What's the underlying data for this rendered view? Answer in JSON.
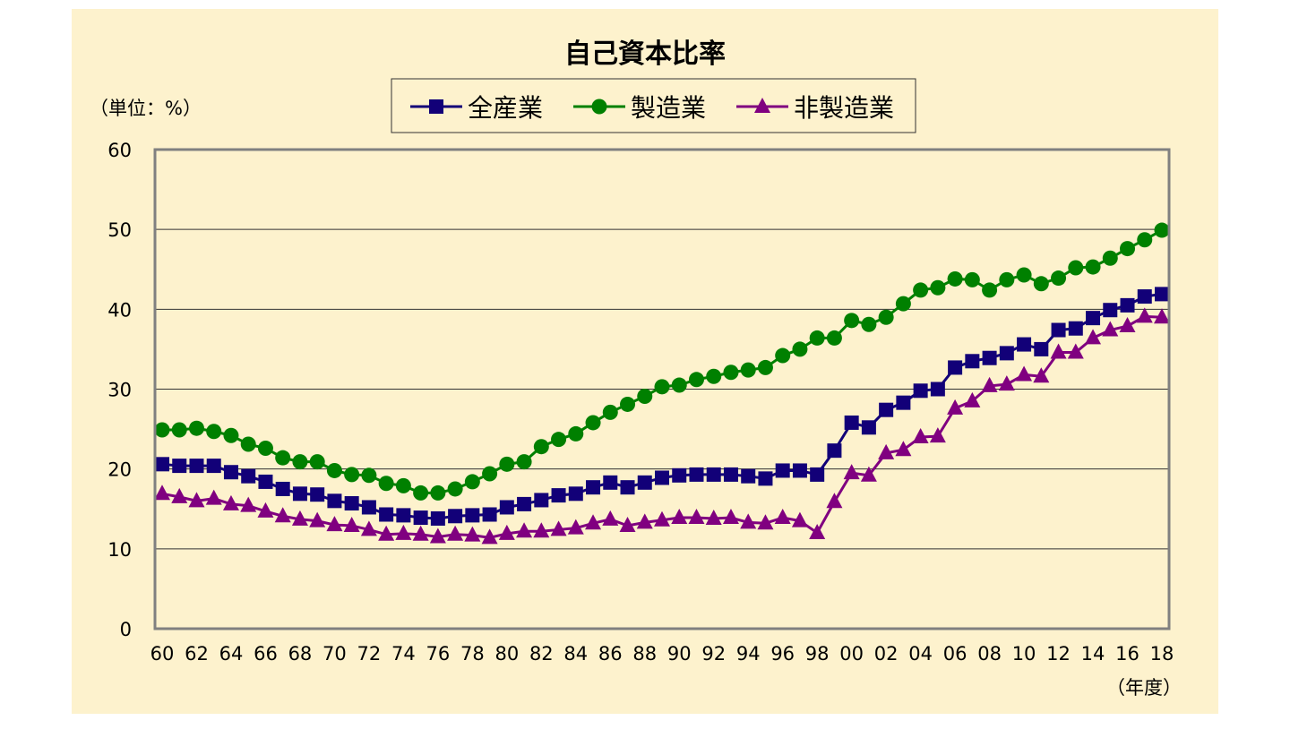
{
  "chart_data": {
    "type": "line",
    "title": "自己資本比率",
    "unit_label": "（単位：%）",
    "xlabel": "（年度）",
    "ylabel": "",
    "ylim": [
      0,
      60
    ],
    "yticks": [
      "0",
      "10",
      "20",
      "30",
      "40",
      "50",
      "60"
    ],
    "grid": true,
    "legend_position": "top-center",
    "x": [
      "60",
      "61",
      "62",
      "63",
      "64",
      "65",
      "66",
      "67",
      "68",
      "69",
      "70",
      "71",
      "72",
      "73",
      "74",
      "75",
      "76",
      "77",
      "78",
      "79",
      "80",
      "81",
      "82",
      "83",
      "84",
      "85",
      "86",
      "87",
      "88",
      "89",
      "90",
      "91",
      "92",
      "93",
      "94",
      "95",
      "96",
      "97",
      "98",
      "99",
      "00",
      "01",
      "02",
      "03",
      "04",
      "05",
      "06",
      "07",
      "08",
      "09",
      "10",
      "11",
      "12",
      "13",
      "14",
      "15",
      "16",
      "17",
      "18"
    ],
    "xtick_labels": [
      "60",
      "62",
      "64",
      "66",
      "68",
      "70",
      "72",
      "74",
      "76",
      "78",
      "80",
      "82",
      "84",
      "86",
      "88",
      "90",
      "92",
      "94",
      "96",
      "98",
      "00",
      "02",
      "04",
      "06",
      "08",
      "10",
      "12",
      "14",
      "16",
      "18"
    ],
    "series": [
      {
        "name": "全産業",
        "color": "#120078",
        "marker": "square",
        "values": [
          20.6,
          20.4,
          20.4,
          20.4,
          19.6,
          19.1,
          18.4,
          17.5,
          16.9,
          16.8,
          16.0,
          15.7,
          15.2,
          14.3,
          14.2,
          13.9,
          13.8,
          14.1,
          14.2,
          14.3,
          15.2,
          15.6,
          16.1,
          16.7,
          16.9,
          17.7,
          18.3,
          17.7,
          18.3,
          18.9,
          19.2,
          19.3,
          19.3,
          19.3,
          19.1,
          18.8,
          19.8,
          19.8,
          19.3,
          22.3,
          25.8,
          25.2,
          27.4,
          28.3,
          29.8,
          30.0,
          32.7,
          33.5,
          33.9,
          34.5,
          35.6,
          35.0,
          37.4,
          37.6,
          38.9,
          39.9,
          40.5,
          41.6,
          41.9
        ]
      },
      {
        "name": "製造業",
        "color": "#008000",
        "marker": "circle",
        "values": [
          24.9,
          24.9,
          25.1,
          24.7,
          24.2,
          23.1,
          22.6,
          21.4,
          20.9,
          20.9,
          19.8,
          19.3,
          19.2,
          18.2,
          17.9,
          17.0,
          17.0,
          17.5,
          18.4,
          19.4,
          20.6,
          20.9,
          22.8,
          23.7,
          24.4,
          25.8,
          27.1,
          28.1,
          29.1,
          30.3,
          30.5,
          31.2,
          31.6,
          32.1,
          32.4,
          32.7,
          34.2,
          35.0,
          36.4,
          36.4,
          38.6,
          38.1,
          39.0,
          40.7,
          42.4,
          42.7,
          43.8,
          43.7,
          42.4,
          43.7,
          44.3,
          43.2,
          43.9,
          45.2,
          45.3,
          46.4,
          47.6,
          48.7,
          49.9
        ]
      },
      {
        "name": "非製造業",
        "color": "#800080",
        "marker": "triangle",
        "values": [
          16.9,
          16.5,
          16.0,
          16.3,
          15.6,
          15.4,
          14.7,
          14.1,
          13.7,
          13.5,
          13.0,
          12.9,
          12.4,
          11.8,
          11.9,
          11.8,
          11.5,
          11.8,
          11.7,
          11.4,
          11.9,
          12.2,
          12.2,
          12.4,
          12.6,
          13.2,
          13.7,
          12.9,
          13.3,
          13.6,
          13.9,
          13.9,
          13.8,
          13.9,
          13.3,
          13.2,
          13.9,
          13.5,
          12.0,
          15.9,
          19.5,
          19.2,
          22.0,
          22.4,
          24.0,
          24.1,
          27.6,
          28.5,
          30.4,
          30.6,
          31.8,
          31.6,
          34.6,
          34.6,
          36.4,
          37.4,
          37.9,
          39.1,
          39.0
        ]
      }
    ],
    "colors": {
      "background": "#fdf2cd",
      "gridline": "#333333"
    }
  }
}
